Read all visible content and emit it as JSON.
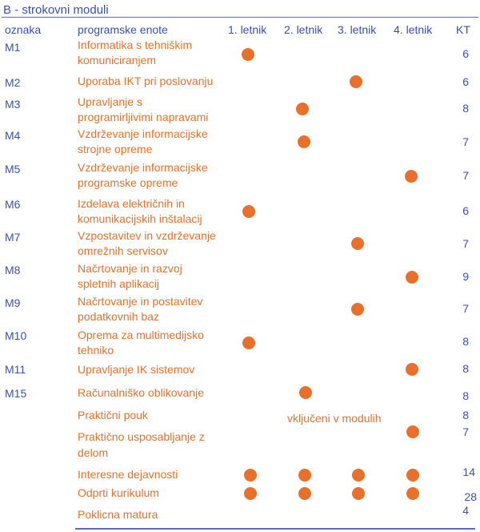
{
  "section_title": "B - strokovni moduli",
  "headers": {
    "code": "oznaka",
    "name": "programske enote",
    "y1": "1. letnik",
    "y2": "2. letnik",
    "y3": "3. letnik",
    "y4": "4. letnik",
    "kt": "KT"
  },
  "rows": [
    {
      "code": "M1",
      "name1": "Informatika s tehniškim",
      "name2": "komuniciranjem",
      "kt": "6"
    },
    {
      "code": "M2",
      "name1": "Uporaba IKT pri poslovanju",
      "name2": "",
      "kt": "6"
    },
    {
      "code": "M3",
      "name1": "Upravljanje s",
      "name2": "programirljivimi napravami",
      "kt": "8"
    },
    {
      "code": "M4",
      "name1": "Vzdrževanje informacijske",
      "name2": "strojne opreme",
      "kt": "7"
    },
    {
      "code": "M5",
      "name1": "Vzdrževanje informacijske",
      "name2": "programske opreme",
      "kt": "7"
    },
    {
      "code": "M6",
      "name1": "Izdelava električnih in",
      "name2": "komunikacijskih inštalacij",
      "kt": "6"
    },
    {
      "code": "M7",
      "name1": "Vzpostavitev in vzdrževanje",
      "name2": "omrežnih servisov",
      "kt": "7"
    },
    {
      "code": "M8",
      "name1": "Načrtovanje in razvoj",
      "name2": "spletnih aplikacij",
      "kt": "9"
    },
    {
      "code": "M9",
      "name1": "Načrtovanje in postavitev",
      "name2": "podatkovnih baz",
      "kt": "7"
    },
    {
      "code": "M10",
      "name1": "Oprema za multimedijsko",
      "name2": "tehniko",
      "kt": "8"
    },
    {
      "code": "M11",
      "name1": "Upravljanje IK sistemov",
      "name2": "",
      "kt": "8"
    },
    {
      "code": "M15",
      "name1": "Računalniško oblikovanje",
      "name2": "",
      "kt": "8"
    },
    {
      "code": "",
      "name1": "Praktični pouk",
      "name2": "",
      "kt": "8"
    },
    {
      "code": "",
      "name1": "Praktično usposabljanje z",
      "name2": "delom",
      "kt": "7"
    },
    {
      "code": "",
      "name1": "Interesne dejavnosti",
      "name2": "",
      "kt": "14"
    },
    {
      "code": "",
      "name1": "Odprti kurikulum",
      "name2": "",
      "kt": "28"
    },
    {
      "code": "",
      "name1": "Poklicna matura",
      "name2": "",
      "kt": "4"
    }
  ],
  "included_note": "vključeni  v modulih"
}
